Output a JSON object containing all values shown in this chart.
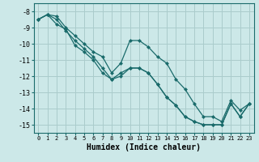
{
  "xlabel": "Humidex (Indice chaleur)",
  "bg_color": "#cce8e8",
  "line_color": "#1a6b6b",
  "grid_color": "#aacccc",
  "xlim": [
    -0.5,
    23.5
  ],
  "ylim": [
    -15.5,
    -7.5
  ],
  "xticks": [
    0,
    1,
    2,
    3,
    4,
    5,
    6,
    7,
    8,
    9,
    10,
    11,
    12,
    13,
    14,
    15,
    16,
    17,
    18,
    19,
    20,
    21,
    22,
    23
  ],
  "yticks": [
    -8,
    -9,
    -10,
    -11,
    -12,
    -13,
    -14,
    -15
  ],
  "line1_y": [
    -8.5,
    -8.2,
    -8.3,
    -9.0,
    -9.5,
    -10.0,
    -10.5,
    -10.8,
    -11.8,
    -11.2,
    -9.8,
    -9.8,
    -10.2,
    -10.8,
    -11.2,
    -12.2,
    -12.8,
    -13.7,
    -14.5,
    -14.5,
    -14.8,
    -13.5,
    -14.1,
    -13.7
  ],
  "line2_y": [
    -8.5,
    -8.2,
    -8.5,
    -9.2,
    -9.8,
    -10.3,
    -10.8,
    -11.5,
    -12.2,
    -11.8,
    -11.5,
    -11.5,
    -11.8,
    -12.5,
    -13.3,
    -13.8,
    -14.5,
    -14.8,
    -15.0,
    -15.0,
    -15.0,
    -13.7,
    -14.5,
    -13.7
  ],
  "line3_y": [
    -8.5,
    -8.2,
    -8.8,
    -9.1,
    -10.1,
    -10.5,
    -11.0,
    -11.8,
    -12.2,
    -12.0,
    -11.5,
    -11.5,
    -11.8,
    -12.5,
    -13.3,
    -13.8,
    -14.5,
    -14.8,
    -15.0,
    -15.0,
    -15.0,
    -13.7,
    -14.5,
    -13.7
  ]
}
